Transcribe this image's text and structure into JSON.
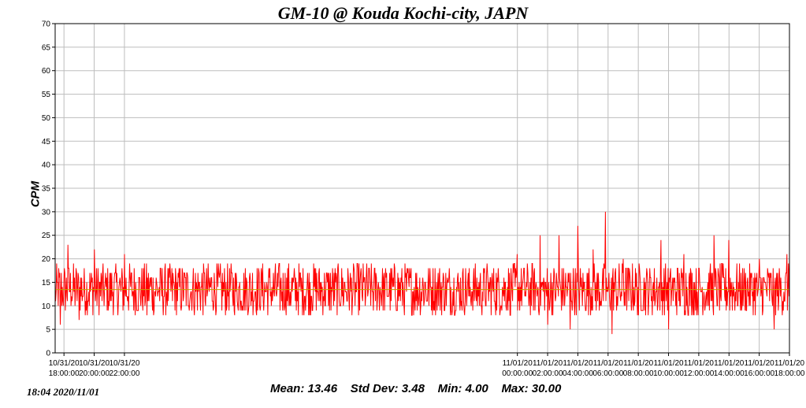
{
  "chart_data": {
    "type": "line",
    "title": "GM-10 @ Kouda Kochi-city, JAPN",
    "ylabel": "CPM",
    "xlabel": "",
    "ylim": [
      0,
      70
    ],
    "yticks": [
      0,
      5,
      10,
      15,
      20,
      25,
      30,
      35,
      40,
      45,
      50,
      55,
      60,
      65,
      70
    ],
    "xticks": [
      {
        "date": "10/31/20",
        "time": "18:00:00"
      },
      {
        "date": "10/31/20",
        "time": "20:00:00"
      },
      {
        "date": "10/31/20",
        "time": "22:00:00"
      },
      {
        "date": "11/01/20",
        "time": "00:00:00"
      },
      {
        "date": "11/01/20",
        "time": "02:00:00"
      },
      {
        "date": "11/01/20",
        "time": "04:00:00"
      },
      {
        "date": "11/01/20",
        "time": "06:00:00"
      },
      {
        "date": "11/01/20",
        "time": "08:00:00"
      },
      {
        "date": "11/01/20",
        "time": "10:00:00"
      },
      {
        "date": "11/01/20",
        "time": "12:00:00"
      },
      {
        "date": "11/01/20",
        "time": "14:00:00"
      },
      {
        "date": "11/01/20",
        "time": "16:00:00"
      },
      {
        "date": "11/01/20",
        "time": "18:00:00"
      }
    ],
    "grid": true,
    "series": [
      {
        "color": "#ff0000",
        "sampled_points": [
          {
            "t": "10/31/20 17:30",
            "v": 13
          },
          {
            "t": "10/31/20 17:45",
            "v": 6
          },
          {
            "t": "10/31/20 18:00",
            "v": 15
          },
          {
            "t": "10/31/20 18:15",
            "v": 23
          },
          {
            "t": "10/31/20 18:30",
            "v": 12
          },
          {
            "t": "10/31/20 19:00",
            "v": 7
          },
          {
            "t": "10/31/20 20:00",
            "v": 22
          },
          {
            "t": "10/31/20 21:00",
            "v": 10
          },
          {
            "t": "10/31/20 22:00",
            "v": 21
          },
          {
            "t": "10/31/20 23:30",
            "v": 8
          },
          {
            "t": "11/01/20 00:00",
            "v": 21
          },
          {
            "t": "11/01/20 01:30",
            "v": 25
          },
          {
            "t": "11/01/20 02:00",
            "v": 6
          },
          {
            "t": "11/01/20 02:45",
            "v": 25
          },
          {
            "t": "11/01/20 03:30",
            "v": 5
          },
          {
            "t": "11/01/20 04:00",
            "v": 27
          },
          {
            "t": "11/01/20 05:00",
            "v": 22
          },
          {
            "t": "11/01/20 05:50",
            "v": 30
          },
          {
            "t": "11/01/20 06:00",
            "v": 13
          },
          {
            "t": "11/01/20 06:15",
            "v": 4
          },
          {
            "t": "11/01/20 07:00",
            "v": 20
          },
          {
            "t": "11/01/20 08:00",
            "v": 8
          },
          {
            "t": "11/01/20 09:30",
            "v": 24
          },
          {
            "t": "11/01/20 10:00",
            "v": 5
          },
          {
            "t": "11/01/20 11:00",
            "v": 21
          },
          {
            "t": "11/01/20 13:00",
            "v": 25
          },
          {
            "t": "11/01/20 14:00",
            "v": 24
          },
          {
            "t": "11/01/20 16:00",
            "v": 20
          },
          {
            "t": "11/01/20 17:00",
            "v": 5
          },
          {
            "t": "11/01/20 17:50",
            "v": 21
          },
          {
            "t": "11/01/20 18:00",
            "v": 20
          }
        ]
      }
    ],
    "mean_line": {
      "value": 13.46,
      "color": "#c8a000"
    },
    "stats": {
      "mean": "13.46",
      "std_dev": "3.48",
      "min": "4.00",
      "max": "30.00"
    }
  },
  "labels": {
    "title": "GM-10 @ Kouda Kochi-city, JAPN",
    "ylabel": "CPM",
    "timestamp": "18:04   2020/11/01",
    "stats_line": "Mean: 13.46    Std Dev: 3.48    Min: 4.00    Max: 30.00"
  }
}
